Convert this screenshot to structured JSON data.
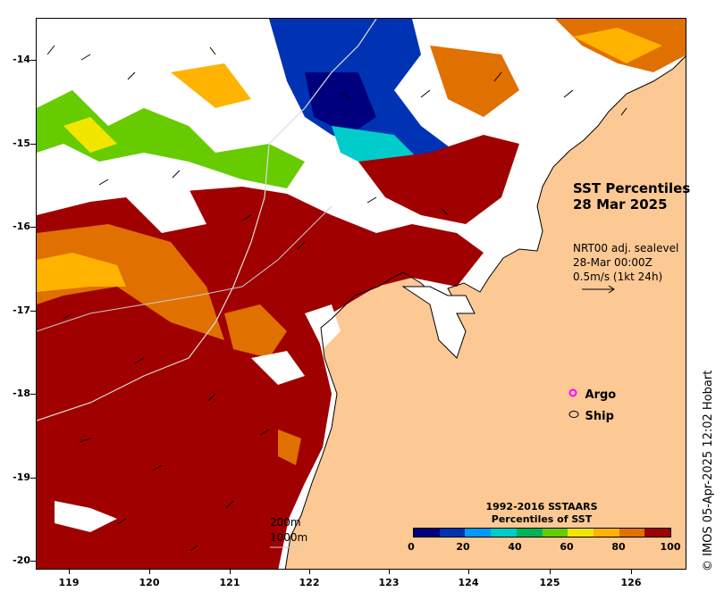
{
  "map": {
    "title_line1": "SST Percentiles",
    "title_line2": "28 Mar 2025",
    "vector_info": {
      "line1": "NRT00 adj. sealevel",
      "line2": "28-Mar 00:00Z",
      "line3": "0.5m/s (1kt 24h)"
    },
    "legend": {
      "argo": "Argo",
      "ship": "Ship"
    },
    "contours": {
      "c200": "200m",
      "c1000": "1000m"
    },
    "colorbar": {
      "title_line1": "1992-2016 SSTAARS",
      "title_line2": "Percentiles of SST",
      "ticks": [
        "0",
        "20",
        "40",
        "60",
        "80",
        "100"
      ],
      "colors": [
        "#00007f",
        "#0033b3",
        "#0099ff",
        "#00cccc",
        "#00b359",
        "#66cc00",
        "#f2e600",
        "#ffb300",
        "#e07000",
        "#a00000"
      ]
    },
    "credit": "© IMOS 05-Apr-2025 12:02 Hobart",
    "land_color": "#fcc894",
    "axes": {
      "lat_labels": [
        "-14",
        "-15",
        "-16",
        "-17",
        "-18",
        "-19",
        "-20"
      ],
      "lon_labels": [
        "119",
        "120",
        "121",
        "122",
        "123",
        "124",
        "125",
        "126"
      ],
      "lat_range": [
        -20.1,
        -13.5
      ],
      "lon_range": [
        118.6,
        126.8
      ]
    }
  }
}
